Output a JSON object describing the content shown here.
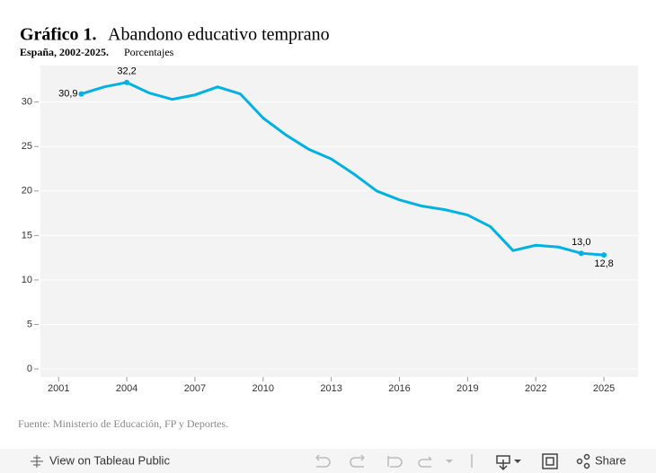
{
  "chart_data": {
    "type": "line",
    "title": "Gráfico 1.",
    "title_rest": "Abandono educativo temprano",
    "subtitle": "España, 2002-2025.",
    "subtitle_rest": "Porcentajes",
    "source": "Fuente: Ministerio de Educación, FP y Deportes.",
    "x": [
      2002,
      2003,
      2004,
      2005,
      2006,
      2007,
      2008,
      2009,
      2010,
      2011,
      2012,
      2013,
      2014,
      2015,
      2016,
      2017,
      2018,
      2019,
      2020,
      2021,
      2022,
      2023,
      2024,
      2025
    ],
    "values": [
      30.9,
      31.7,
      32.2,
      31.0,
      30.3,
      30.8,
      31.7,
      30.9,
      28.2,
      26.3,
      24.7,
      23.6,
      21.9,
      20.0,
      19.0,
      18.3,
      17.9,
      17.3,
      16.0,
      13.3,
      13.9,
      13.7,
      13.0,
      12.8
    ],
    "value_labels": [
      "30,9",
      null,
      "32,2",
      null,
      null,
      null,
      null,
      null,
      null,
      null,
      null,
      null,
      null,
      null,
      null,
      null,
      null,
      null,
      null,
      null,
      null,
      null,
      "13,0",
      "12,8"
    ],
    "color": "#00b2e3",
    "xlim": [
      2000.2,
      2026.5
    ],
    "xticks": [
      2001,
      2004,
      2007,
      2010,
      2013,
      2016,
      2019,
      2022,
      2025
    ],
    "ylim": [
      -0.9,
      34.1
    ],
    "yticks": [
      0,
      5,
      10,
      15,
      20,
      25,
      30
    ],
    "grid": true
  },
  "toolbar": {
    "view": "View on Tableau Public",
    "share": "Share"
  }
}
